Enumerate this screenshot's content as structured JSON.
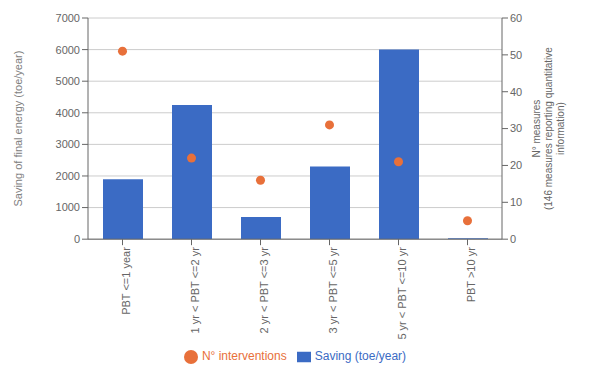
{
  "chart_data": {
    "type": "bar",
    "categories": [
      "PBT <=1 year",
      "1 yr < PBT <=2 yr",
      "2 yr < PBT <=3 yr",
      "3 yr < PBT <=5 yr",
      "5 yr < PBT <=10 yr",
      "PBT >10 yr"
    ],
    "series": [
      {
        "name": "Saving (toe/year)",
        "type": "bar",
        "color": "#3b6bc4",
        "values": [
          1900,
          4250,
          700,
          2300,
          6000,
          30
        ]
      },
      {
        "name": "N° interventions",
        "type": "scatter",
        "color": "#e8703a",
        "marker": "circle",
        "axis": "y2",
        "values": [
          51,
          22,
          16,
          31,
          21,
          5
        ]
      }
    ],
    "ylabel": "Saving of final energy (toe/year)",
    "y2label": "N° measures\n(146 measures reporting quantitative\ninformation)",
    "ylim": [
      0,
      7000
    ],
    "yticks": [
      0,
      1000,
      2000,
      3000,
      4000,
      5000,
      6000,
      7000
    ],
    "y2lim": [
      0,
      60
    ],
    "y2ticks": [
      0,
      10,
      20,
      30,
      40,
      50,
      60
    ],
    "grid": true,
    "legend": "bottom"
  }
}
